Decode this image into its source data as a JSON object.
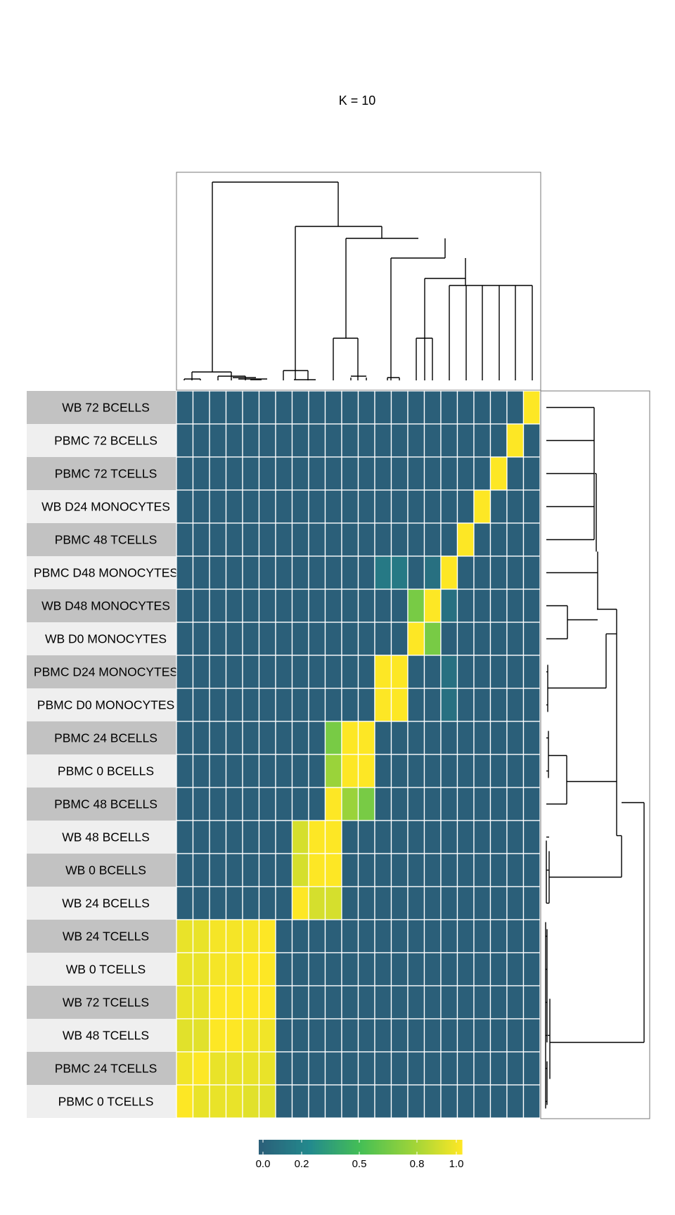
{
  "chart_data": {
    "type": "heatmap",
    "title": "K =  10",
    "rows": [
      "WB 72 BCELLS",
      "PBMC 72 BCELLS",
      "PBMC 72 TCELLS",
      "WB D24 MONOCYTES",
      "PBMC 48 TCELLS",
      "PBMC D48 MONOCYTES",
      "WB D48 MONOCYTES",
      "WB D0 MONOCYTES",
      "PBMC D24 MONOCYTES",
      "PBMC D0 MONOCYTES",
      "PBMC 24 BCELLS",
      "PBMC 0 BCELLS",
      "PBMC 48 BCELLS",
      "WB 48 BCELLS",
      "WB 0 BCELLS",
      "WB 24 BCELLS",
      "WB 24 TCELLS",
      "WB 0 TCELLS",
      "WB 72 TCELLS",
      "WB 48 TCELLS",
      "PBMC 24 TCELLS",
      "PBMC 0 TCELLS"
    ],
    "values": [
      [
        0,
        0,
        0,
        0,
        0,
        0,
        0,
        0,
        0,
        0,
        0,
        0,
        0,
        0,
        0,
        0,
        0,
        0,
        0,
        0,
        0,
        1
      ],
      [
        0,
        0,
        0,
        0,
        0,
        0,
        0,
        0,
        0,
        0,
        0,
        0,
        0,
        0,
        0,
        0,
        0,
        0,
        0,
        0,
        1,
        0
      ],
      [
        0,
        0,
        0,
        0,
        0,
        0,
        0,
        0,
        0,
        0,
        0,
        0,
        0,
        0,
        0,
        0,
        0,
        0,
        0,
        1,
        0,
        0
      ],
      [
        0,
        0,
        0,
        0,
        0,
        0,
        0,
        0,
        0,
        0,
        0,
        0,
        0,
        0,
        0,
        0,
        0,
        0,
        1,
        0,
        0,
        0
      ],
      [
        0,
        0,
        0,
        0,
        0,
        0,
        0,
        0,
        0,
        0,
        0,
        0,
        0,
        0,
        0,
        0,
        0,
        1,
        0,
        0,
        0,
        0
      ],
      [
        0,
        0,
        0,
        0,
        0,
        0,
        0,
        0,
        0,
        0,
        0,
        0,
        0.15,
        0.15,
        0,
        0.1,
        1,
        0,
        0,
        0,
        0,
        0
      ],
      [
        0,
        0,
        0,
        0,
        0,
        0,
        0,
        0,
        0,
        0,
        0,
        0,
        0,
        0,
        0.65,
        1,
        0.1,
        0,
        0,
        0,
        0,
        0
      ],
      [
        0,
        0,
        0,
        0,
        0,
        0,
        0,
        0,
        0,
        0,
        0,
        0,
        0,
        0,
        1,
        0.65,
        0,
        0,
        0,
        0,
        0,
        0
      ],
      [
        0,
        0,
        0,
        0,
        0,
        0,
        0,
        0,
        0,
        0,
        0,
        0,
        1,
        1,
        0,
        0,
        0.1,
        0,
        0,
        0,
        0,
        0
      ],
      [
        0,
        0,
        0,
        0,
        0,
        0,
        0,
        0,
        0,
        0,
        0,
        0,
        1,
        1,
        0,
        0,
        0.1,
        0,
        0,
        0,
        0,
        0
      ],
      [
        0,
        0,
        0,
        0,
        0,
        0,
        0,
        0,
        0,
        0.65,
        1,
        1,
        0,
        0,
        0,
        0,
        0,
        0,
        0,
        0,
        0,
        0
      ],
      [
        0,
        0,
        0,
        0,
        0,
        0,
        0,
        0,
        0,
        0.75,
        1,
        1,
        0,
        0,
        0,
        0,
        0,
        0,
        0,
        0,
        0,
        0
      ],
      [
        0,
        0,
        0,
        0,
        0,
        0,
        0,
        0,
        0,
        1,
        0.75,
        0.65,
        0,
        0,
        0,
        0,
        0,
        0,
        0,
        0,
        0,
        0
      ],
      [
        0,
        0,
        0,
        0,
        0,
        0,
        0,
        0.9,
        1,
        1,
        0,
        0,
        0,
        0,
        0,
        0,
        0,
        0,
        0,
        0,
        0,
        0
      ],
      [
        0,
        0,
        0,
        0,
        0,
        0,
        0,
        0.9,
        1,
        1,
        0,
        0,
        0,
        0,
        0,
        0,
        0,
        0,
        0,
        0,
        0,
        0
      ],
      [
        0,
        0,
        0,
        0,
        0,
        0,
        0,
        1,
        0.9,
        0.9,
        0,
        0,
        0,
        0,
        0,
        0,
        0,
        0,
        0,
        0,
        0,
        0
      ],
      [
        0.95,
        0.95,
        0.98,
        0.98,
        0.98,
        1,
        0,
        0,
        0,
        0,
        0,
        0,
        0,
        0,
        0,
        0,
        0,
        0,
        0,
        0,
        0,
        0
      ],
      [
        0.95,
        0.95,
        0.98,
        0.98,
        1,
        1,
        0,
        0,
        0,
        0,
        0,
        0,
        0,
        0,
        0,
        0,
        0,
        0,
        0,
        0,
        0,
        0
      ],
      [
        0.95,
        0.95,
        1,
        1,
        1,
        1,
        0,
        0,
        0,
        0,
        0,
        0,
        0,
        0,
        0,
        0,
        0,
        0,
        0,
        0,
        0,
        0
      ],
      [
        0.93,
        0.93,
        1,
        1,
        0.97,
        0.97,
        0,
        0,
        0,
        0,
        0,
        0,
        0,
        0,
        0,
        0,
        0,
        0,
        0,
        0,
        0,
        0
      ],
      [
        0.97,
        1,
        0.95,
        0.95,
        0.95,
        0.95,
        0,
        0,
        0,
        0,
        0,
        0,
        0,
        0,
        0,
        0,
        0,
        0,
        0,
        0,
        0,
        0
      ],
      [
        1,
        0.95,
        0.95,
        0.95,
        0.93,
        0.93,
        0,
        0,
        0,
        0,
        0,
        0,
        0,
        0,
        0,
        0,
        0,
        0,
        0,
        0,
        0,
        0
      ]
    ],
    "row_label_fills": [
      "#c2c2c2",
      "#efefef"
    ],
    "colorscale": {
      "name": "viridis-upper",
      "stops": [
        "#2b5f79",
        "#238a8d",
        "#45bf55",
        "#9ad33a",
        "#fde725"
      ],
      "ticks": [
        "0.0",
        "0.2",
        "0.5",
        "0.8",
        "1.0"
      ],
      "range": [
        0,
        1
      ]
    },
    "cell_grid_color": "#ffffff",
    "row_dendrogram": true,
    "column_dendrogram": true
  }
}
